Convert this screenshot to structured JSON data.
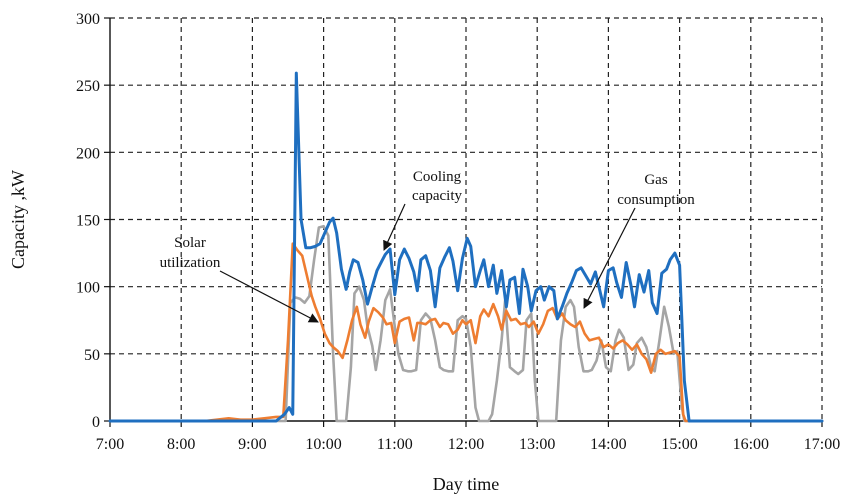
{
  "chart_data": {
    "type": "line",
    "title": "",
    "xlabel": "Day time",
    "ylabel": "Capacity ,kW",
    "x_ticks": [
      "7:00",
      "8:00",
      "9:00",
      "10:00",
      "11:00",
      "12:00",
      "13:00",
      "14:00",
      "15:00",
      "16:00",
      "17:00"
    ],
    "y_ticks": [
      "0",
      "50",
      "100",
      "150",
      "200",
      "250",
      "300"
    ],
    "xlim": [
      "7:00",
      "17:00"
    ],
    "ylim": [
      0,
      300
    ],
    "grid": true,
    "legend": "none",
    "colors": {
      "cooling": "#1f6fc0",
      "solar": "#ee7d31",
      "gas": "#a5a5a5",
      "grid": "#222222",
      "axis": "#111111",
      "arrow": "#111111"
    },
    "annotations": [
      {
        "text": "Cooling",
        "series": "cooling"
      },
      {
        "text": "capacity",
        "series": "cooling"
      },
      {
        "text": "Gas",
        "series": "gas"
      },
      {
        "text": "consumption",
        "series": "gas"
      },
      {
        "text": "Solar",
        "series": "solar"
      },
      {
        "text": "utilization",
        "series": "solar"
      }
    ],
    "series": [
      {
        "key": "cooling",
        "color": "#1f6fc0",
        "points": [
          [
            "7:00",
            0
          ],
          [
            "9:00",
            0
          ],
          [
            "9:20",
            0
          ],
          [
            "9:27",
            5
          ],
          [
            "9:31",
            10
          ],
          [
            "9:34",
            5
          ],
          [
            "9:37",
            259
          ],
          [
            "9:41",
            150
          ],
          [
            "9:45",
            129
          ],
          [
            "9:49",
            129
          ],
          [
            "9:53",
            130
          ],
          [
            "9:57",
            132
          ],
          [
            "10:01",
            140
          ],
          [
            "10:05",
            148
          ],
          [
            "10:08",
            151
          ],
          [
            "10:11",
            140
          ],
          [
            "10:15",
            113
          ],
          [
            "10:19",
            98
          ],
          [
            "10:22",
            111
          ],
          [
            "10:25",
            120
          ],
          [
            "10:29",
            118
          ],
          [
            "10:33",
            105
          ],
          [
            "10:37",
            87
          ],
          [
            "10:41",
            100
          ],
          [
            "10:45",
            112
          ],
          [
            "10:49",
            119
          ],
          [
            "10:52",
            124
          ],
          [
            "10:56",
            128
          ],
          [
            "11:00",
            94
          ],
          [
            "11:04",
            120
          ],
          [
            "11:08",
            128
          ],
          [
            "11:12",
            121
          ],
          [
            "11:16",
            111
          ],
          [
            "11:19",
            97
          ],
          [
            "11:22",
            120
          ],
          [
            "11:26",
            123
          ],
          [
            "11:30",
            112
          ],
          [
            "11:34",
            85
          ],
          [
            "11:38",
            114
          ],
          [
            "11:42",
            122
          ],
          [
            "11:46",
            129
          ],
          [
            "11:49",
            119
          ],
          [
            "11:53",
            97
          ],
          [
            "11:57",
            121
          ],
          [
            "12:01",
            136
          ],
          [
            "12:04",
            130
          ],
          [
            "12:08",
            100
          ],
          [
            "12:12",
            112
          ],
          [
            "12:15",
            120
          ],
          [
            "12:19",
            100
          ],
          [
            "12:23",
            116
          ],
          [
            "12:26",
            95
          ],
          [
            "12:30",
            112
          ],
          [
            "12:34",
            85
          ],
          [
            "12:37",
            105
          ],
          [
            "12:41",
            107
          ],
          [
            "12:45",
            80
          ],
          [
            "12:48",
            113
          ],
          [
            "12:52",
            100
          ],
          [
            "12:55",
            82
          ],
          [
            "12:59",
            97
          ],
          [
            "13:03",
            100
          ],
          [
            "13:06",
            90
          ],
          [
            "13:10",
            100
          ],
          [
            "13:14",
            97
          ],
          [
            "13:17",
            76
          ],
          [
            "13:21",
            85
          ],
          [
            "13:25",
            95
          ],
          [
            "13:29",
            103
          ],
          [
            "13:33",
            112
          ],
          [
            "13:37",
            114
          ],
          [
            "13:41",
            108
          ],
          [
            "13:45",
            102
          ],
          [
            "13:49",
            111
          ],
          [
            "13:52",
            100
          ],
          [
            "13:56",
            85
          ],
          [
            "14:00",
            112
          ],
          [
            "14:04",
            114
          ],
          [
            "14:07",
            103
          ],
          [
            "14:11",
            92
          ],
          [
            "14:15",
            118
          ],
          [
            "14:19",
            101
          ],
          [
            "14:22",
            85
          ],
          [
            "14:26",
            109
          ],
          [
            "14:30",
            96
          ],
          [
            "14:34",
            112
          ],
          [
            "14:37",
            88
          ],
          [
            "14:41",
            80
          ],
          [
            "14:45",
            110
          ],
          [
            "14:49",
            113
          ],
          [
            "14:52",
            120
          ],
          [
            "14:56",
            125
          ],
          [
            "15:00",
            116
          ],
          [
            "15:04",
            30
          ],
          [
            "15:08",
            0
          ],
          [
            "17:00",
            0
          ]
        ]
      },
      {
        "key": "solar",
        "color": "#ee7d31",
        "points": [
          [
            "7:00",
            0
          ],
          [
            "8:20",
            0
          ],
          [
            "8:30",
            1
          ],
          [
            "8:40",
            2
          ],
          [
            "8:50",
            1
          ],
          [
            "9:00",
            1
          ],
          [
            "9:10",
            2
          ],
          [
            "9:20",
            3
          ],
          [
            "9:26",
            3
          ],
          [
            "9:30",
            60
          ],
          [
            "9:34",
            132
          ],
          [
            "9:38",
            127
          ],
          [
            "9:42",
            123
          ],
          [
            "9:46",
            108
          ],
          [
            "9:50",
            93
          ],
          [
            "9:53",
            85
          ],
          [
            "9:57",
            76
          ],
          [
            "10:01",
            65
          ],
          [
            "10:05",
            58
          ],
          [
            "10:08",
            55
          ],
          [
            "10:12",
            52
          ],
          [
            "10:16",
            47
          ],
          [
            "10:20",
            60
          ],
          [
            "10:24",
            75
          ],
          [
            "10:28",
            85
          ],
          [
            "10:31",
            72
          ],
          [
            "10:35",
            62
          ],
          [
            "10:38",
            74
          ],
          [
            "10:42",
            84
          ],
          [
            "10:46",
            81
          ],
          [
            "10:50",
            77
          ],
          [
            "10:53",
            72
          ],
          [
            "10:57",
            73
          ],
          [
            "11:00",
            58
          ],
          [
            "11:04",
            74
          ],
          [
            "11:08",
            76
          ],
          [
            "11:12",
            77
          ],
          [
            "11:16",
            60
          ],
          [
            "11:19",
            73
          ],
          [
            "11:22",
            73
          ],
          [
            "11:26",
            72
          ],
          [
            "11:30",
            75
          ],
          [
            "11:34",
            76
          ],
          [
            "11:38",
            70
          ],
          [
            "11:41",
            73
          ],
          [
            "11:45",
            72
          ],
          [
            "11:49",
            65
          ],
          [
            "11:53",
            68
          ],
          [
            "11:57",
            75
          ],
          [
            "12:00",
            72
          ],
          [
            "12:04",
            75
          ],
          [
            "12:08",
            58
          ],
          [
            "12:12",
            78
          ],
          [
            "12:15",
            83
          ],
          [
            "12:19",
            78
          ],
          [
            "12:23",
            87
          ],
          [
            "12:27",
            78
          ],
          [
            "12:30",
            68
          ],
          [
            "12:34",
            82
          ],
          [
            "12:38",
            75
          ],
          [
            "12:42",
            76
          ],
          [
            "12:46",
            72
          ],
          [
            "12:50",
            73
          ],
          [
            "12:53",
            70
          ],
          [
            "12:57",
            74
          ],
          [
            "13:01",
            65
          ],
          [
            "13:05",
            72
          ],
          [
            "13:09",
            82
          ],
          [
            "13:13",
            84
          ],
          [
            "13:17",
            76
          ],
          [
            "13:21",
            80
          ],
          [
            "13:24",
            75
          ],
          [
            "13:28",
            72
          ],
          [
            "13:32",
            70
          ],
          [
            "13:36",
            74
          ],
          [
            "13:40",
            65
          ],
          [
            "13:44",
            60
          ],
          [
            "13:48",
            61
          ],
          [
            "13:52",
            62
          ],
          [
            "13:56",
            55
          ],
          [
            "14:00",
            57
          ],
          [
            "14:04",
            54
          ],
          [
            "14:08",
            58
          ],
          [
            "14:12",
            60
          ],
          [
            "14:16",
            57
          ],
          [
            "14:20",
            53
          ],
          [
            "14:24",
            57
          ],
          [
            "14:28",
            50
          ],
          [
            "14:32",
            46
          ],
          [
            "14:36",
            36
          ],
          [
            "14:40",
            50
          ],
          [
            "14:44",
            53
          ],
          [
            "14:48",
            50
          ],
          [
            "14:52",
            51
          ],
          [
            "14:56",
            52
          ],
          [
            "15:00",
            48
          ],
          [
            "15:03",
            5
          ],
          [
            "15:05",
            0
          ],
          [
            "17:00",
            0
          ]
        ]
      },
      {
        "key": "gas",
        "color": "#a5a5a5",
        "points": [
          [
            "7:00",
            0
          ],
          [
            "9:20",
            0
          ],
          [
            "9:28",
            0
          ],
          [
            "9:32",
            88
          ],
          [
            "9:36",
            92
          ],
          [
            "9:40",
            91
          ],
          [
            "9:44",
            88
          ],
          [
            "9:48",
            93
          ],
          [
            "9:52",
            120
          ],
          [
            "9:56",
            144
          ],
          [
            "10:00",
            145
          ],
          [
            "10:04",
            138
          ],
          [
            "10:08",
            50
          ],
          [
            "10:11",
            0
          ],
          [
            "10:15",
            0
          ],
          [
            "10:19",
            0
          ],
          [
            "10:23",
            40
          ],
          [
            "10:26",
            95
          ],
          [
            "10:30",
            100
          ],
          [
            "10:34",
            90
          ],
          [
            "10:37",
            70
          ],
          [
            "10:41",
            56
          ],
          [
            "10:44",
            38
          ],
          [
            "10:48",
            60
          ],
          [
            "10:52",
            90
          ],
          [
            "10:56",
            98
          ],
          [
            "11:00",
            70
          ],
          [
            "11:03",
            50
          ],
          [
            "11:07",
            38
          ],
          [
            "11:11",
            37
          ],
          [
            "11:14",
            37
          ],
          [
            "11:18",
            38
          ],
          [
            "11:22",
            75
          ],
          [
            "11:26",
            80
          ],
          [
            "11:30",
            76
          ],
          [
            "11:34",
            60
          ],
          [
            "11:38",
            40
          ],
          [
            "11:41",
            38
          ],
          [
            "11:45",
            37
          ],
          [
            "11:49",
            37
          ],
          [
            "11:53",
            75
          ],
          [
            "11:57",
            78
          ],
          [
            "12:00",
            76
          ],
          [
            "12:04",
            55
          ],
          [
            "12:08",
            10
          ],
          [
            "12:11",
            0
          ],
          [
            "12:15",
            0
          ],
          [
            "12:19",
            0
          ],
          [
            "12:22",
            5
          ],
          [
            "12:26",
            30
          ],
          [
            "12:30",
            60
          ],
          [
            "12:33",
            90
          ],
          [
            "12:37",
            40
          ],
          [
            "12:41",
            37
          ],
          [
            "12:44",
            35
          ],
          [
            "12:48",
            38
          ],
          [
            "12:51",
            75
          ],
          [
            "12:55",
            80
          ],
          [
            "12:58",
            30
          ],
          [
            "13:01",
            0
          ],
          [
            "13:05",
            0
          ],
          [
            "13:09",
            0
          ],
          [
            "13:13",
            0
          ],
          [
            "13:16",
            0
          ],
          [
            "13:20",
            60
          ],
          [
            "13:24",
            85
          ],
          [
            "13:28",
            90
          ],
          [
            "13:31",
            85
          ],
          [
            "13:35",
            55
          ],
          [
            "13:39",
            37
          ],
          [
            "13:43",
            37
          ],
          [
            "13:46",
            38
          ],
          [
            "13:50",
            45
          ],
          [
            "13:54",
            60
          ],
          [
            "13:58",
            40
          ],
          [
            "14:02",
            37
          ],
          [
            "14:06",
            60
          ],
          [
            "14:09",
            68
          ],
          [
            "14:13",
            62
          ],
          [
            "14:17",
            38
          ],
          [
            "14:21",
            42
          ],
          [
            "14:24",
            58
          ],
          [
            "14:28",
            62
          ],
          [
            "14:32",
            55
          ],
          [
            "14:36",
            40
          ],
          [
            "14:39",
            37
          ],
          [
            "14:43",
            60
          ],
          [
            "14:47",
            85
          ],
          [
            "14:51",
            70
          ],
          [
            "14:55",
            50
          ],
          [
            "14:58",
            52
          ],
          [
            "15:02",
            10
          ],
          [
            "15:04",
            0
          ],
          [
            "17:00",
            0
          ]
        ]
      }
    ]
  }
}
